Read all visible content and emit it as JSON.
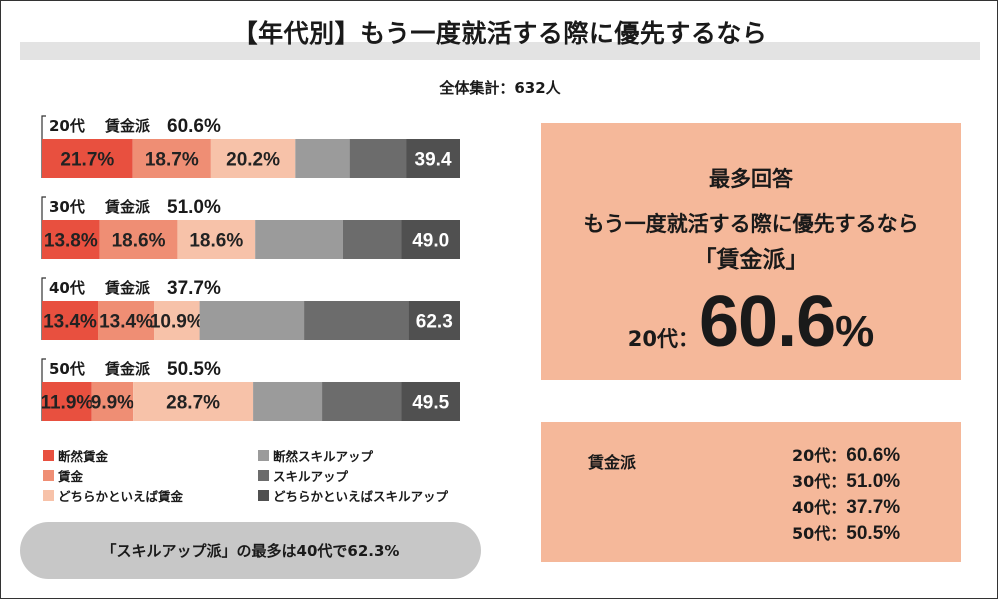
{
  "title": "【年代別】もう一度就活する際に優先するなら",
  "total_label": "全体集計：632人",
  "colors": {
    "danzen_chingin": "#e8503f",
    "chingin": "#ef8e74",
    "dochira_chingin": "#f7c2a9",
    "danzen_skill": "#9b9b9b",
    "skill": "#6c6c6c",
    "dochira_skill": "#505050",
    "panel": "#f5b89a",
    "pill": "#c7c7c7"
  },
  "chart_data": {
    "type": "bar",
    "orientation": "horizontal-stacked",
    "xlim": [
      0,
      100
    ],
    "categories": [
      "20代",
      "30代",
      "40代",
      "50代"
    ],
    "row_summaries": [
      {
        "age": "20代",
        "label": "賃金派",
        "value": "60.6%"
      },
      {
        "age": "30代",
        "label": "賃金派",
        "value": "51.0%"
      },
      {
        "age": "40代",
        "label": "賃金派",
        "value": "37.7%"
      },
      {
        "age": "50代",
        "label": "賃金派",
        "value": "50.5%"
      }
    ],
    "series": [
      {
        "name": "断然賃金",
        "values": [
          21.7,
          13.8,
          13.4,
          11.9
        ],
        "labels": [
          "21.7%",
          "13.8%",
          "13.4%",
          "11.9%"
        ]
      },
      {
        "name": "賃金",
        "values": [
          18.7,
          18.6,
          13.4,
          9.9
        ],
        "labels": [
          "18.7%",
          "18.6%",
          "13.4%",
          "9.9%"
        ]
      },
      {
        "name": "どちらかといえば賃金",
        "values": [
          20.2,
          18.6,
          10.9,
          28.7
        ],
        "labels": [
          "20.2%",
          "18.6%",
          "10.9%",
          "28.7%"
        ]
      },
      {
        "name": "断然スキルアップ",
        "values": [
          13.0,
          21.0,
          25.0,
          16.5
        ]
      },
      {
        "name": "スキルアップ",
        "values": [
          13.5,
          14.0,
          25.0,
          19.0
        ]
      },
      {
        "name": "どちらかといえばスキルアップ",
        "values": [
          12.9,
          14.0,
          12.3,
          14.0
        ]
      }
    ],
    "skill_totals": [
      "39.4",
      "49.0",
      "62.3",
      "49.5"
    ],
    "legend": {
      "left": [
        "断然賃金",
        "賃金",
        "どちらかといえば賃金"
      ],
      "right": [
        "断然スキルアップ",
        "スキルアップ",
        "どちらかといえばスキルアップ"
      ]
    }
  },
  "pill_text": "「スキルアップ派」の最多は40代で62.3%",
  "highlight": {
    "heading": "最多回答",
    "question": "もう一度就活する際に優先するなら",
    "answer": "「賃金派」",
    "age_label": "20代：",
    "value": "60.6",
    "pct": "%"
  },
  "summary": {
    "label": "賃金派",
    "rows": [
      {
        "age": "20代：",
        "value": "60.6%"
      },
      {
        "age": "30代：",
        "value": "51.0%"
      },
      {
        "age": "40代：",
        "value": "37.7%"
      },
      {
        "age": "50代：",
        "value": "50.5%"
      }
    ]
  }
}
